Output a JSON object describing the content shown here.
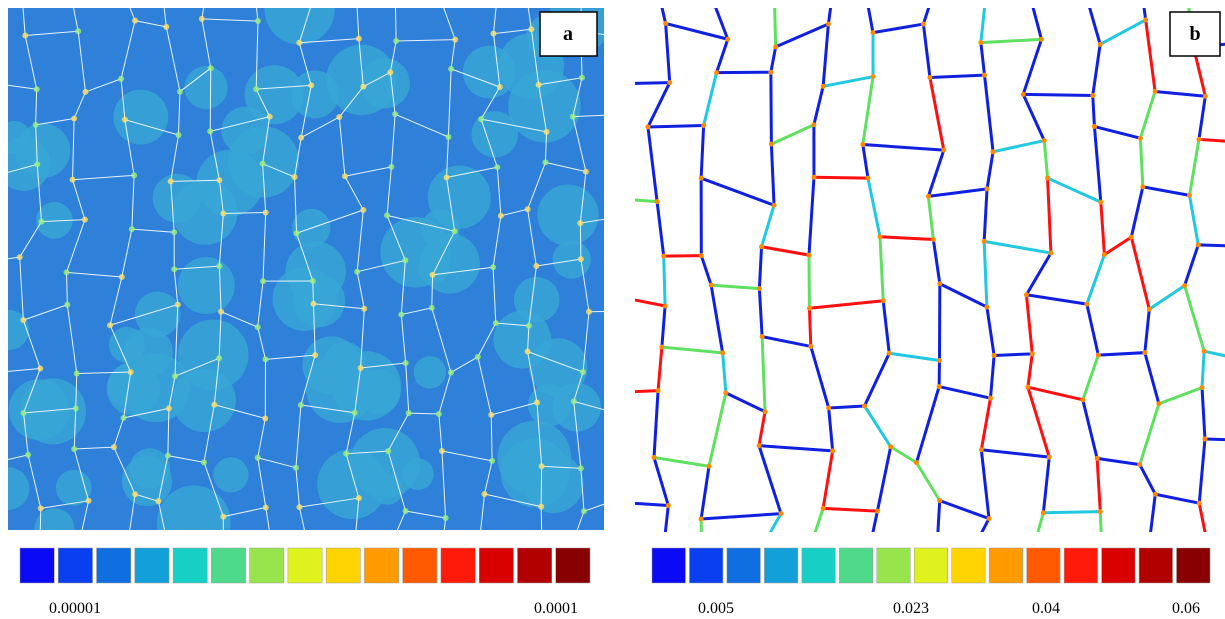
{
  "panels": [
    {
      "label": "a",
      "colorbar_labels": [
        "0.00001",
        "0.0001"
      ]
    },
    {
      "label": "b",
      "colorbar_labels": [
        "0.005",
        "0.023",
        "0.04",
        "0.06"
      ]
    }
  ]
}
